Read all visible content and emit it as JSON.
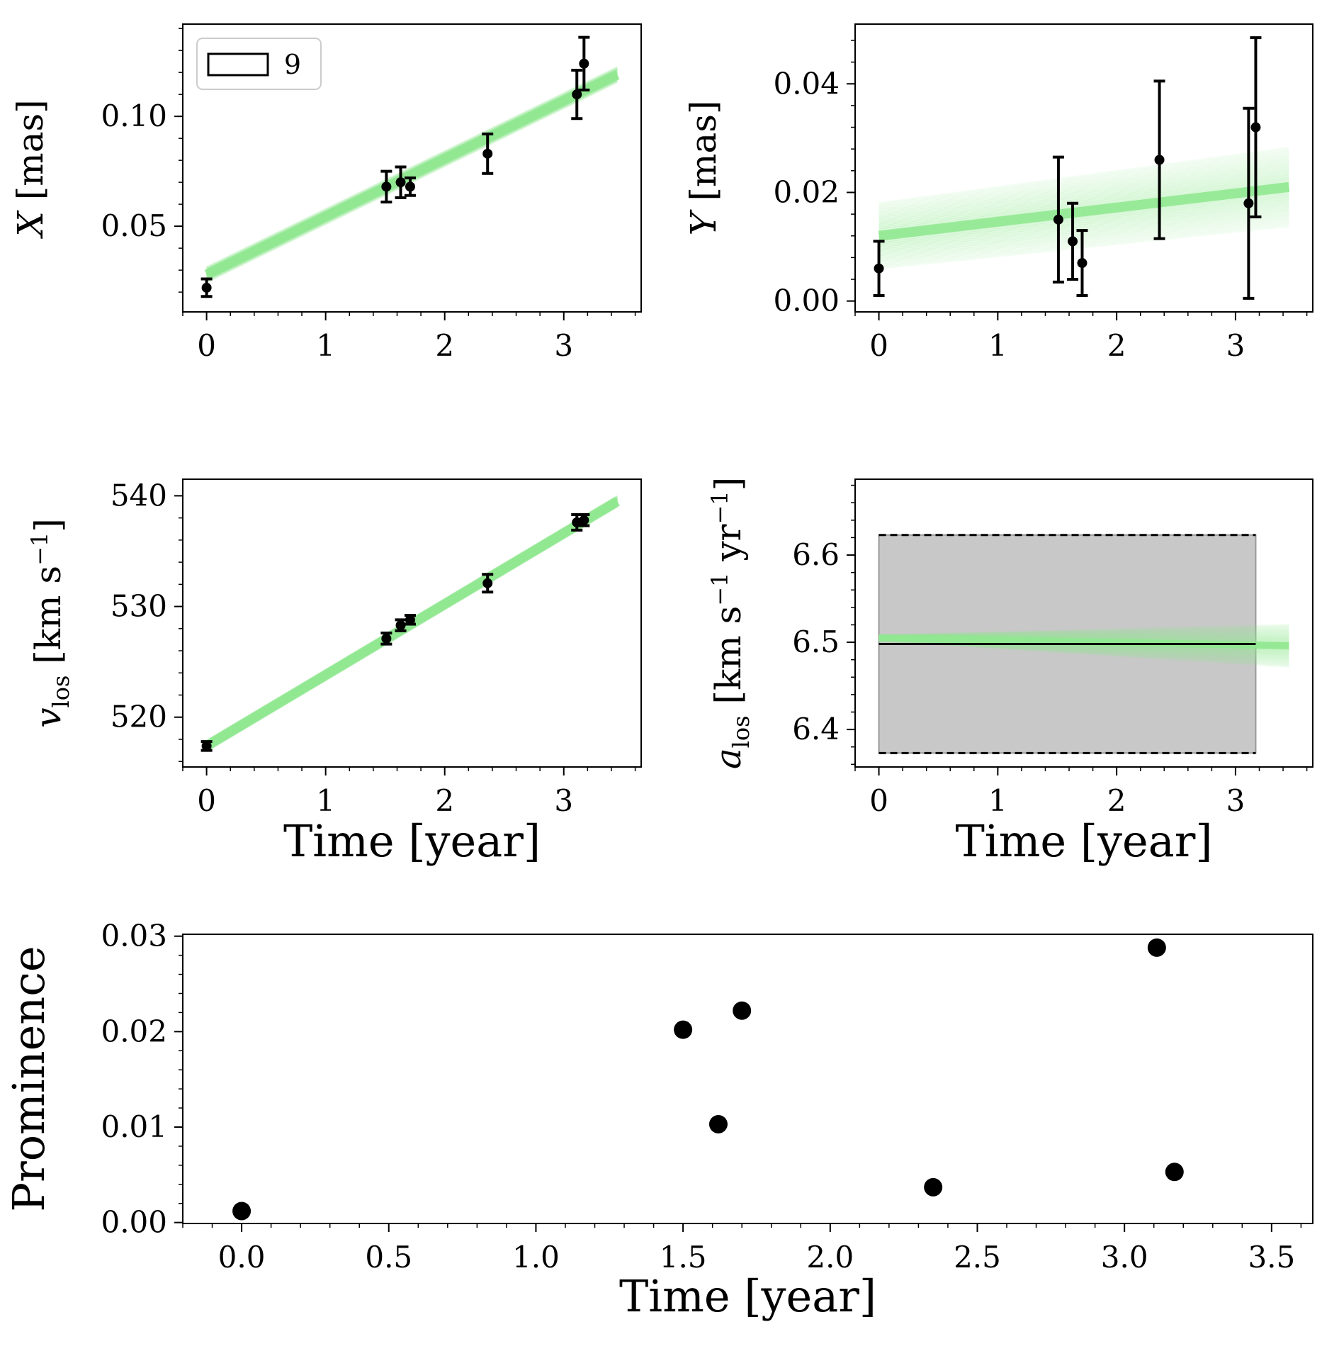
{
  "chart_data": [
    {
      "id": "x",
      "type": "scatter",
      "ylabel": {
        "main": "X",
        "unit": "[mas]"
      },
      "xlabel": "",
      "xlim": [
        -0.2,
        3.65
      ],
      "ylim": [
        0.011,
        0.142
      ],
      "xticks": [
        0,
        1,
        2,
        3
      ],
      "xtick_labels": [
        "0",
        "1",
        "2",
        "3"
      ],
      "yticks": [
        0.05,
        0.1
      ],
      "ytick_labels": [
        "0.05",
        "0.10"
      ],
      "legend": {
        "label": "9",
        "position": "top-left"
      },
      "points": [
        {
          "x": 0.0,
          "y": 0.022,
          "err": 0.004
        },
        {
          "x": 1.51,
          "y": 0.068,
          "err": 0.007
        },
        {
          "x": 1.63,
          "y": 0.07,
          "err": 0.007
        },
        {
          "x": 1.71,
          "y": 0.068,
          "err": 0.004
        },
        {
          "x": 2.36,
          "y": 0.083,
          "err": 0.009
        },
        {
          "x": 3.11,
          "y": 0.11,
          "err": 0.011
        },
        {
          "x": 3.17,
          "y": 0.124,
          "err": 0.012
        }
      ],
      "model_band": {
        "x0": 0.0,
        "x1": 3.45,
        "y0": 0.028,
        "y1": 0.119,
        "spread": 0.0035
      }
    },
    {
      "id": "y",
      "type": "scatter",
      "ylabel": {
        "main": "Y",
        "unit": "[mas]"
      },
      "xlabel": "",
      "xlim": [
        -0.2,
        3.65
      ],
      "ylim": [
        -0.002,
        0.051
      ],
      "xticks": [
        0,
        1,
        2,
        3
      ],
      "xtick_labels": [
        "0",
        "1",
        "2",
        "3"
      ],
      "yticks": [
        0.0,
        0.02,
        0.04
      ],
      "ytick_labels": [
        "0.00",
        "0.02",
        "0.04"
      ],
      "points": [
        {
          "x": 0.0,
          "y": 0.006,
          "err": 0.005
        },
        {
          "x": 1.51,
          "y": 0.015,
          "err": 0.0115
        },
        {
          "x": 1.63,
          "y": 0.011,
          "err": 0.007
        },
        {
          "x": 1.71,
          "y": 0.007,
          "err": 0.006
        },
        {
          "x": 2.36,
          "y": 0.026,
          "err": 0.0145
        },
        {
          "x": 3.11,
          "y": 0.018,
          "err": 0.0175
        },
        {
          "x": 3.17,
          "y": 0.032,
          "err": 0.0165
        }
      ],
      "model_band": {
        "x0": 0.0,
        "x1": 3.45,
        "y0": 0.012,
        "y1": 0.021,
        "spread": 0.006
      }
    },
    {
      "id": "vlos",
      "type": "scatter",
      "ylabel": {
        "main": "v",
        "sub": "los",
        "unit": "[km s",
        "sup": "−1",
        "close": "]"
      },
      "xlabel": "Time [year]",
      "xlim": [
        -0.2,
        3.65
      ],
      "ylim": [
        515.5,
        541.5
      ],
      "xticks": [
        0,
        1,
        2,
        3
      ],
      "xtick_labels": [
        "0",
        "1",
        "2",
        "3"
      ],
      "yticks": [
        520,
        530,
        540
      ],
      "ytick_labels": [
        "520",
        "530",
        "540"
      ],
      "points": [
        {
          "x": 0.0,
          "y": 517.4,
          "err": 0.4
        },
        {
          "x": 1.51,
          "y": 527.1,
          "err": 0.5
        },
        {
          "x": 1.63,
          "y": 528.3,
          "err": 0.5
        },
        {
          "x": 1.71,
          "y": 528.8,
          "err": 0.4
        },
        {
          "x": 2.36,
          "y": 532.1,
          "err": 0.8
        },
        {
          "x": 3.11,
          "y": 537.6,
          "err": 0.7
        },
        {
          "x": 3.17,
          "y": 537.8,
          "err": 0.5
        }
      ],
      "model_band": {
        "x0": 0.0,
        "x1": 3.45,
        "y0": 517.4,
        "y1": 539.5,
        "spread": 0.5
      }
    },
    {
      "id": "alos",
      "type": "line",
      "ylabel": {
        "main": "a",
        "sub": "los",
        "unit": "[km s",
        "sup": "−1",
        "mid": " yr",
        "sup2": "−1",
        "close": "]"
      },
      "xlabel": "Time [year]",
      "xlim": [
        -0.2,
        3.65
      ],
      "ylim": [
        6.357,
        6.687
      ],
      "xticks": [
        0,
        1,
        2,
        3
      ],
      "xtick_labels": [
        "0",
        "1",
        "2",
        "3"
      ],
      "yticks": [
        6.4,
        6.5,
        6.6
      ],
      "ytick_labels": [
        "6.4",
        "6.5",
        "6.6"
      ],
      "constraint_box": {
        "x0": 0.0,
        "x1": 3.17,
        "y_low": 6.373,
        "y_high": 6.623,
        "y_mid": 6.498
      },
      "model_band": {
        "x0": 0.0,
        "x1": 3.45,
        "y0": 6.505,
        "y1": 6.496,
        "spread": 0.003
      }
    },
    {
      "id": "prominence",
      "type": "scatter",
      "ylabel": "Prominence",
      "xlabel": "Time [year]",
      "xlim": [
        -0.2,
        3.64
      ],
      "ylim": [
        -0.0001,
        0.0302
      ],
      "xticks": [
        0.0,
        0.5,
        1.0,
        1.5,
        2.0,
        2.5,
        3.0,
        3.5
      ],
      "xtick_labels": [
        "0.0",
        "0.5",
        "1.0",
        "1.5",
        "2.0",
        "2.5",
        "3.0",
        "3.5"
      ],
      "yticks": [
        0.0,
        0.01,
        0.02,
        0.03
      ],
      "ytick_labels": [
        "0.00",
        "0.01",
        "0.02",
        "0.03"
      ],
      "points": [
        {
          "x": 0.0,
          "y": 0.0012
        },
        {
          "x": 1.5,
          "y": 0.0202
        },
        {
          "x": 1.62,
          "y": 0.0103
        },
        {
          "x": 1.7,
          "y": 0.0222
        },
        {
          "x": 2.35,
          "y": 0.0037
        },
        {
          "x": 3.11,
          "y": 0.0288
        },
        {
          "x": 3.17,
          "y": 0.0053
        }
      ]
    }
  ],
  "colors": {
    "model": "#90e890",
    "box_fill": "#c8c8c8",
    "ink": "#000000"
  }
}
